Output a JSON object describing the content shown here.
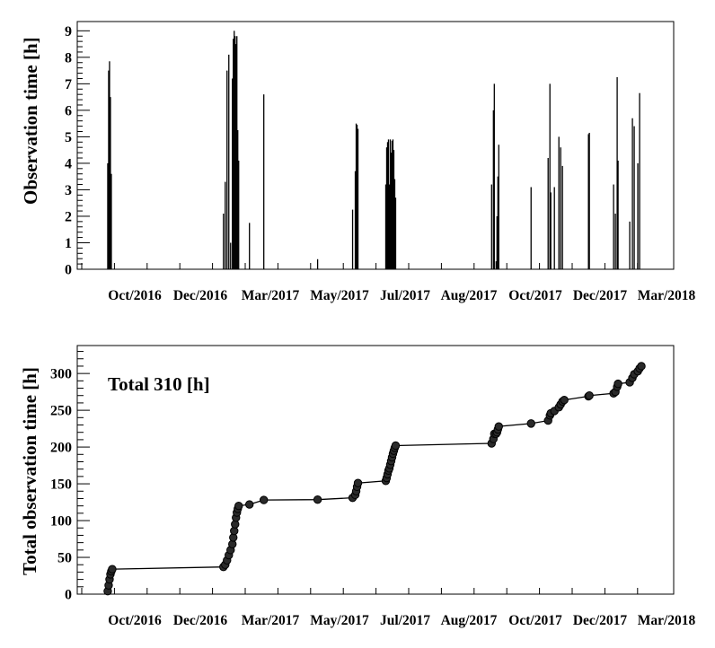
{
  "chart_data": [
    {
      "type": "bar",
      "title": "",
      "xlabel": "",
      "ylabel": "Observation time [h]",
      "ylim": [
        0,
        9.35
      ],
      "yticks": [
        0,
        1,
        2,
        3,
        4,
        5,
        6,
        7,
        8,
        9
      ],
      "xticks": [
        "Oct/2016",
        "Dec/2016",
        "Mar/2017",
        "May/2017",
        "Jul/2017",
        "Aug/2017",
        "Oct/2017",
        "Dec/2017",
        "Mar/2018"
      ],
      "grid": false,
      "x_unit": "days",
      "points": [
        [
          9,
          4.0
        ],
        [
          10,
          7.5
        ],
        [
          11,
          7.85
        ],
        [
          12,
          6.5
        ],
        [
          13,
          3.6
        ],
        [
          138,
          2.1
        ],
        [
          140,
          3.3
        ],
        [
          142,
          7.5
        ],
        [
          144,
          8.1
        ],
        [
          146,
          1.0
        ],
        [
          148,
          7.2
        ],
        [
          149,
          8.7
        ],
        [
          150,
          9.0
        ],
        [
          151,
          8.8
        ],
        [
          152,
          8.5
        ],
        [
          153,
          8.8
        ],
        [
          154,
          5.25
        ],
        [
          155,
          4.1
        ],
        [
          167,
          1.75
        ],
        [
          183,
          6.6
        ],
        [
          243,
          0.38
        ],
        [
          282,
          2.25
        ],
        [
          285,
          3.7
        ],
        [
          286,
          5.5
        ],
        [
          287,
          5.45
        ],
        [
          288,
          5.3
        ],
        [
          319,
          3.2
        ],
        [
          320,
          4.6
        ],
        [
          321,
          4.8
        ],
        [
          322,
          4.9
        ],
        [
          323,
          3.2
        ],
        [
          324,
          4.9
        ],
        [
          325,
          4.4
        ],
        [
          326,
          4.85
        ],
        [
          327,
          4.9
        ],
        [
          328,
          4.5
        ],
        [
          329,
          3.4
        ],
        [
          330,
          2.7
        ],
        [
          437,
          3.2
        ],
        [
          439,
          6.0
        ],
        [
          440,
          7.0
        ],
        [
          442,
          0.3
        ],
        [
          443,
          2.0
        ],
        [
          444,
          3.5
        ],
        [
          445,
          4.7
        ],
        [
          481,
          3.1
        ],
        [
          500,
          4.2
        ],
        [
          502,
          7.0
        ],
        [
          503,
          2.9
        ],
        [
          507,
          3.1
        ],
        [
          512,
          5.0
        ],
        [
          514,
          4.6
        ],
        [
          516,
          3.9
        ],
        [
          545,
          5.1
        ],
        [
          546,
          5.15
        ],
        [
          573,
          3.2
        ],
        [
          575,
          2.1
        ],
        [
          577,
          7.25
        ],
        [
          578,
          4.1
        ],
        [
          591,
          1.8
        ],
        [
          594,
          5.7
        ],
        [
          596,
          5.4
        ],
        [
          600,
          4.0
        ],
        [
          602,
          6.65
        ]
      ],
      "bar_width_days": 1.2
    },
    {
      "type": "scatter",
      "title": "",
      "xlabel": "",
      "ylabel": "Total observation time [h]",
      "ylim": [
        0,
        338
      ],
      "yticks": [
        0,
        50,
        100,
        150,
        200,
        250,
        300
      ],
      "xticks": [
        "Oct/2016",
        "Dec/2016",
        "Mar/2017",
        "May/2017",
        "Jul/2017",
        "Aug/2017",
        "Oct/2017",
        "Dec/2017",
        "Mar/2018"
      ],
      "grid": false,
      "annotation": "Total 310 [h]",
      "x_unit": "days",
      "points": [
        [
          9,
          4
        ],
        [
          10,
          12
        ],
        [
          11,
          20
        ],
        [
          12,
          27
        ],
        [
          13,
          31
        ],
        [
          14,
          34
        ],
        [
          138,
          37
        ],
        [
          140,
          40
        ],
        [
          142,
          46
        ],
        [
          144,
          53
        ],
        [
          146,
          60
        ],
        [
          148,
          68
        ],
        [
          149,
          77
        ],
        [
          150,
          86
        ],
        [
          151,
          95
        ],
        [
          152,
          104
        ],
        [
          153,
          111
        ],
        [
          154,
          116
        ],
        [
          155,
          120
        ],
        [
          167,
          122
        ],
        [
          183,
          128
        ],
        [
          243,
          128.5
        ],
        [
          282,
          131
        ],
        [
          285,
          135
        ],
        [
          286,
          140
        ],
        [
          287,
          146
        ],
        [
          288,
          151
        ],
        [
          319,
          154
        ],
        [
          320,
          158
        ],
        [
          321,
          163
        ],
        [
          322,
          168
        ],
        [
          323,
          171
        ],
        [
          324,
          176
        ],
        [
          325,
          181
        ],
        [
          326,
          186
        ],
        [
          327,
          191
        ],
        [
          328,
          195
        ],
        [
          329,
          199
        ],
        [
          330,
          202
        ],
        [
          437,
          205
        ],
        [
          439,
          211
        ],
        [
          440,
          218
        ],
        [
          442,
          218
        ],
        [
          443,
          220
        ],
        [
          444,
          224
        ],
        [
          445,
          228
        ],
        [
          481,
          232
        ],
        [
          500,
          236
        ],
        [
          502,
          243
        ],
        [
          503,
          246
        ],
        [
          507,
          249
        ],
        [
          512,
          254
        ],
        [
          514,
          258
        ],
        [
          516,
          262
        ],
        [
          518,
          264
        ],
        [
          545,
          269
        ],
        [
          546,
          270
        ],
        [
          573,
          273
        ],
        [
          575,
          275
        ],
        [
          577,
          282
        ],
        [
          578,
          286
        ],
        [
          591,
          288
        ],
        [
          594,
          294
        ],
        [
          596,
          299
        ],
        [
          600,
          303
        ],
        [
          602,
          307
        ],
        [
          604,
          310
        ]
      ]
    }
  ]
}
